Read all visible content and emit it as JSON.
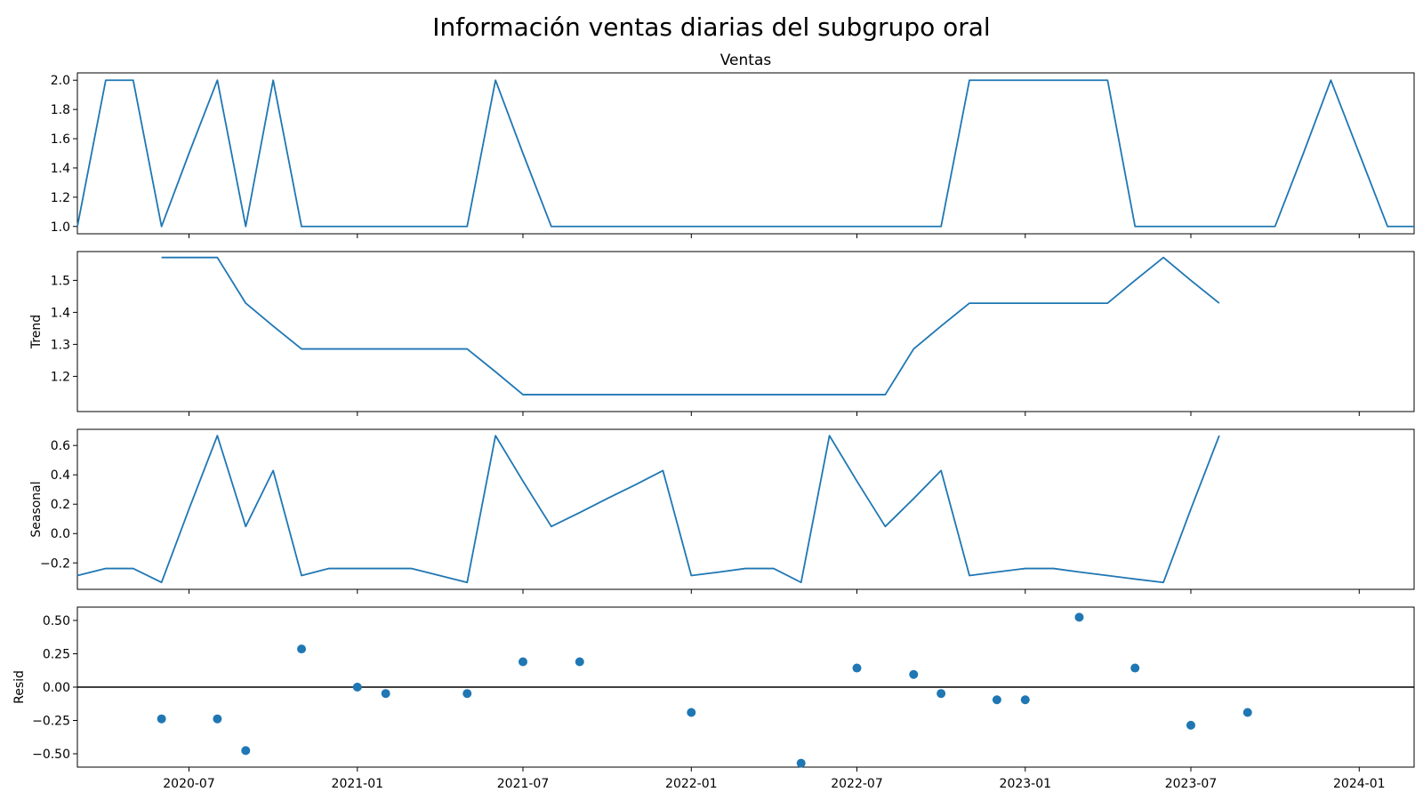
{
  "title": "Información ventas diarias del subgrupo oral",
  "colors": {
    "line": "#1f77b4",
    "axis": "#000000",
    "background": "#ffffff"
  },
  "chart_data": {
    "x_axis": {
      "type": "date",
      "range": [
        "2020-03-01",
        "2024-03-01"
      ],
      "tick_dates": [
        "2020-07-01",
        "2021-01-01",
        "2021-07-01",
        "2022-01-01",
        "2022-07-01",
        "2023-01-01",
        "2023-07-01",
        "2024-01-01"
      ],
      "tick_labels": [
        "2020-07",
        "2021-01",
        "2021-07",
        "2022-01",
        "2022-07",
        "2023-01",
        "2023-07",
        "2024-01"
      ]
    },
    "panels": [
      {
        "id": "ventas",
        "type": "line",
        "title": "Ventas",
        "ylabel": "",
        "ylim": [
          0.95,
          2.05
        ],
        "yticks": [
          1.0,
          1.2,
          1.4,
          1.6,
          1.8,
          2.0
        ],
        "tick_labels": [
          "1.0",
          "1.2",
          "1.4",
          "1.6",
          "1.8",
          "2.0"
        ],
        "points": [
          [
            "2020-03-01",
            1
          ],
          [
            "2020-04-01",
            2
          ],
          [
            "2020-05-01",
            2
          ],
          [
            "2020-06-01",
            1
          ],
          [
            "2020-07-01",
            1.5
          ],
          [
            "2020-08-01",
            2
          ],
          [
            "2020-09-01",
            1
          ],
          [
            "2020-10-01",
            2
          ],
          [
            "2020-11-01",
            1
          ],
          [
            "2020-12-01",
            1
          ],
          [
            "2021-01-01",
            1
          ],
          [
            "2021-02-01",
            1
          ],
          [
            "2021-03-01",
            1
          ],
          [
            "2021-04-01",
            1
          ],
          [
            "2021-05-01",
            1
          ],
          [
            "2021-06-01",
            2
          ],
          [
            "2021-07-01",
            1.5
          ],
          [
            "2021-08-01",
            1
          ],
          [
            "2021-09-01",
            1
          ],
          [
            "2021-10-01",
            1
          ],
          [
            "2021-11-01",
            1
          ],
          [
            "2021-12-01",
            1
          ],
          [
            "2022-01-01",
            1
          ],
          [
            "2022-02-01",
            1
          ],
          [
            "2022-03-01",
            1
          ],
          [
            "2022-04-01",
            1
          ],
          [
            "2022-05-01",
            1
          ],
          [
            "2022-06-01",
            1
          ],
          [
            "2022-07-01",
            1
          ],
          [
            "2022-08-01",
            1
          ],
          [
            "2022-09-01",
            1
          ],
          [
            "2022-10-01",
            1
          ],
          [
            "2022-11-01",
            2
          ],
          [
            "2022-12-01",
            2
          ],
          [
            "2023-01-01",
            2
          ],
          [
            "2023-02-01",
            2
          ],
          [
            "2023-03-01",
            2
          ],
          [
            "2023-04-01",
            2
          ],
          [
            "2023-05-01",
            1
          ],
          [
            "2023-06-01",
            1
          ],
          [
            "2023-07-01",
            1
          ],
          [
            "2023-08-01",
            1
          ],
          [
            "2023-09-01",
            1
          ],
          [
            "2023-10-01",
            1
          ],
          [
            "2023-11-01",
            1.5
          ],
          [
            "2023-12-01",
            2
          ],
          [
            "2024-01-01",
            1.5
          ],
          [
            "2024-02-01",
            1
          ],
          [
            "2024-03-01",
            1
          ]
        ]
      },
      {
        "id": "trend",
        "type": "line",
        "title": "",
        "ylabel": "Trend",
        "ylim": [
          1.09,
          1.59
        ],
        "yticks": [
          1.2,
          1.3,
          1.4,
          1.5
        ],
        "tick_labels": [
          "1.2",
          "1.3",
          "1.4",
          "1.5"
        ],
        "points": [
          [
            "2020-06-01",
            1.5714
          ],
          [
            "2020-07-01",
            1.5714
          ],
          [
            "2020-08-01",
            1.5714
          ],
          [
            "2020-09-01",
            1.4286
          ],
          [
            "2020-10-01",
            1.3571
          ],
          [
            "2020-11-01",
            1.2857
          ],
          [
            "2020-12-01",
            1.2857
          ],
          [
            "2021-01-01",
            1.2857
          ],
          [
            "2021-02-01",
            1.2857
          ],
          [
            "2021-03-01",
            1.2857
          ],
          [
            "2021-04-01",
            1.2857
          ],
          [
            "2021-05-01",
            1.2857
          ],
          [
            "2021-06-01",
            1.2143
          ],
          [
            "2021-07-01",
            1.1429
          ],
          [
            "2021-08-01",
            1.1429
          ],
          [
            "2021-09-01",
            1.1429
          ],
          [
            "2021-10-01",
            1.1429
          ],
          [
            "2021-11-01",
            1.1429
          ],
          [
            "2021-12-01",
            1.1429
          ],
          [
            "2022-01-01",
            1.1429
          ],
          [
            "2022-02-01",
            1.1429
          ],
          [
            "2022-03-01",
            1.1429
          ],
          [
            "2022-04-01",
            1.1429
          ],
          [
            "2022-05-01",
            1.1429
          ],
          [
            "2022-06-01",
            1.1429
          ],
          [
            "2022-07-01",
            1.1429
          ],
          [
            "2022-08-01",
            1.1429
          ],
          [
            "2022-09-01",
            1.2857
          ],
          [
            "2022-10-01",
            1.3571
          ],
          [
            "2022-11-01",
            1.4286
          ],
          [
            "2022-12-01",
            1.4286
          ],
          [
            "2023-01-01",
            1.4286
          ],
          [
            "2023-02-01",
            1.4286
          ],
          [
            "2023-03-01",
            1.4286
          ],
          [
            "2023-04-01",
            1.4286
          ],
          [
            "2023-05-01",
            1.5
          ],
          [
            "2023-06-01",
            1.5714
          ],
          [
            "2023-07-01",
            1.5
          ],
          [
            "2023-08-01",
            1.4286
          ]
        ]
      },
      {
        "id": "seasonal",
        "type": "line",
        "title": "",
        "ylabel": "Seasonal",
        "ylim": [
          -0.38,
          0.71
        ],
        "yticks": [
          -0.2,
          0.0,
          0.2,
          0.4,
          0.6
        ],
        "tick_labels": [
          "−0.2",
          "0.0",
          "0.2",
          "0.4",
          "0.6"
        ],
        "points": [
          [
            "2020-03-01",
            -0.286
          ],
          [
            "2020-04-01",
            -0.238
          ],
          [
            "2020-05-01",
            -0.238
          ],
          [
            "2020-06-01",
            -0.333
          ],
          [
            "2020-07-01",
            0.167
          ],
          [
            "2020-08-01",
            0.667
          ],
          [
            "2020-09-01",
            0.048
          ],
          [
            "2020-10-01",
            0.429
          ],
          [
            "2020-11-01",
            -0.286
          ],
          [
            "2020-12-01",
            -0.238
          ],
          [
            "2021-01-01",
            -0.238
          ],
          [
            "2021-02-01",
            -0.238
          ],
          [
            "2021-03-01",
            -0.238
          ],
          [
            "2021-04-01",
            -0.286
          ],
          [
            "2021-05-01",
            -0.333
          ],
          [
            "2021-06-01",
            0.667
          ],
          [
            "2021-07-01",
            0.357
          ],
          [
            "2021-08-01",
            0.048
          ],
          [
            "2021-09-01",
            0.143
          ],
          [
            "2021-10-01",
            0.238
          ],
          [
            "2021-11-01",
            0.333
          ],
          [
            "2021-12-01",
            0.429
          ],
          [
            "2022-01-01",
            -0.286
          ],
          [
            "2022-02-01",
            -0.262
          ],
          [
            "2022-03-01",
            -0.238
          ],
          [
            "2022-04-01",
            -0.238
          ],
          [
            "2022-05-01",
            -0.333
          ],
          [
            "2022-06-01",
            0.667
          ],
          [
            "2022-07-01",
            0.357
          ],
          [
            "2022-08-01",
            0.048
          ],
          [
            "2022-09-01",
            0.238
          ],
          [
            "2022-10-01",
            0.429
          ],
          [
            "2022-11-01",
            -0.286
          ],
          [
            "2022-12-01",
            -0.262
          ],
          [
            "2023-01-01",
            -0.238
          ],
          [
            "2023-02-01",
            -0.238
          ],
          [
            "2023-03-01",
            -0.262
          ],
          [
            "2023-04-01",
            -0.286
          ],
          [
            "2023-05-01",
            -0.31
          ],
          [
            "2023-06-01",
            -0.333
          ],
          [
            "2023-07-01",
            0.167
          ],
          [
            "2023-08-01",
            0.667
          ]
        ]
      },
      {
        "id": "resid",
        "type": "scatter",
        "title": "",
        "ylabel": "Resid",
        "ylim": [
          -0.6,
          0.6
        ],
        "yticks": [
          -0.5,
          -0.25,
          0.0,
          0.25,
          0.5
        ],
        "tick_labels": [
          "−0.50",
          "−0.25",
          "0.00",
          "0.25",
          "0.50"
        ],
        "zero_line": true,
        "points": [
          [
            "2020-06-01",
            -0.238
          ],
          [
            "2020-08-01",
            -0.238
          ],
          [
            "2020-09-01",
            -0.476
          ],
          [
            "2020-11-01",
            0.286
          ],
          [
            "2021-01-01",
            0.0
          ],
          [
            "2021-02-01",
            -0.048
          ],
          [
            "2021-05-01",
            -0.048
          ],
          [
            "2021-07-01",
            0.19
          ],
          [
            "2021-09-01",
            0.19
          ],
          [
            "2022-01-01",
            -0.19
          ],
          [
            "2022-05-01",
            -0.571
          ],
          [
            "2022-07-01",
            0.143
          ],
          [
            "2022-09-01",
            0.095
          ],
          [
            "2022-10-01",
            -0.048
          ],
          [
            "2022-12-01",
            -0.095
          ],
          [
            "2023-01-01",
            -0.095
          ],
          [
            "2023-03-01",
            0.524
          ],
          [
            "2023-05-01",
            0.143
          ],
          [
            "2023-07-01",
            -0.286
          ],
          [
            "2023-09-01",
            -0.19
          ]
        ]
      }
    ]
  }
}
